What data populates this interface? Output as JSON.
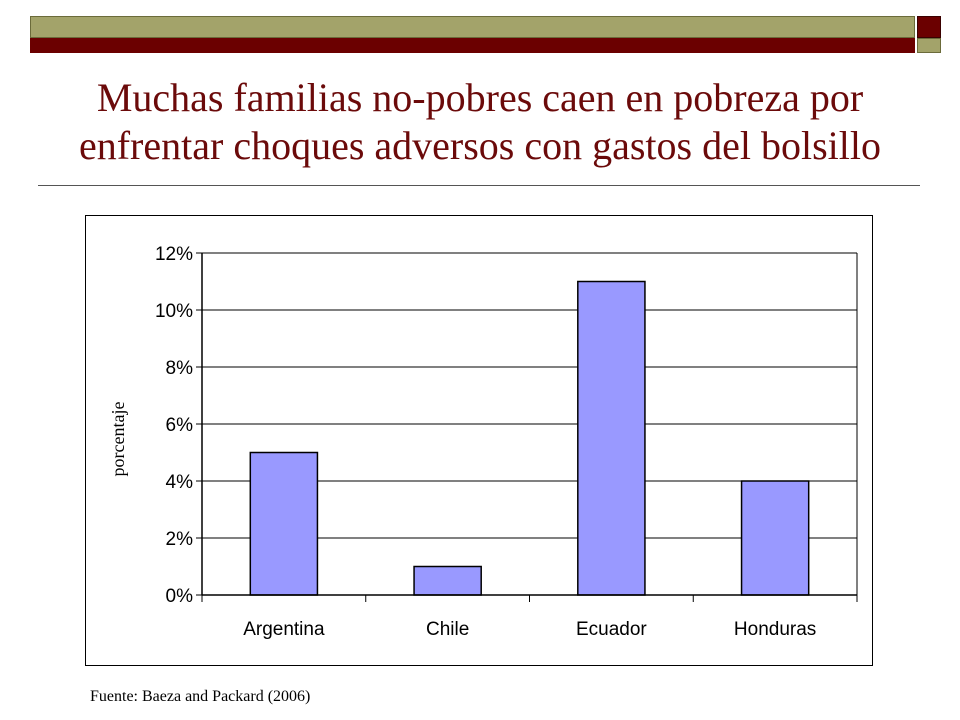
{
  "slide": {
    "title": "Muchas familias no-pobres caen en pobreza por enfrentar choques adversos con gastos del bolsillo",
    "source": "Fuente:  Baeza and Packard (2006)",
    "colors": {
      "title": "#6b0a0a",
      "bar_olive": "#a3a36a",
      "bar_maroon": "#6b0000"
    }
  },
  "chart_data": {
    "type": "bar",
    "categories": [
      "Argentina",
      "Chile",
      "Ecuador",
      "Honduras"
    ],
    "values": [
      5,
      1,
      11,
      4
    ],
    "ylabel": "porcentaje",
    "ylim": [
      0,
      12
    ],
    "yticks": [
      0,
      2,
      4,
      6,
      8,
      10,
      12
    ],
    "ytick_labels": [
      "0%",
      "2%",
      "4%",
      "6%",
      "8%",
      "10%",
      "12%"
    ],
    "grid": true,
    "legend": "none",
    "bar_color": "#9999ff"
  }
}
